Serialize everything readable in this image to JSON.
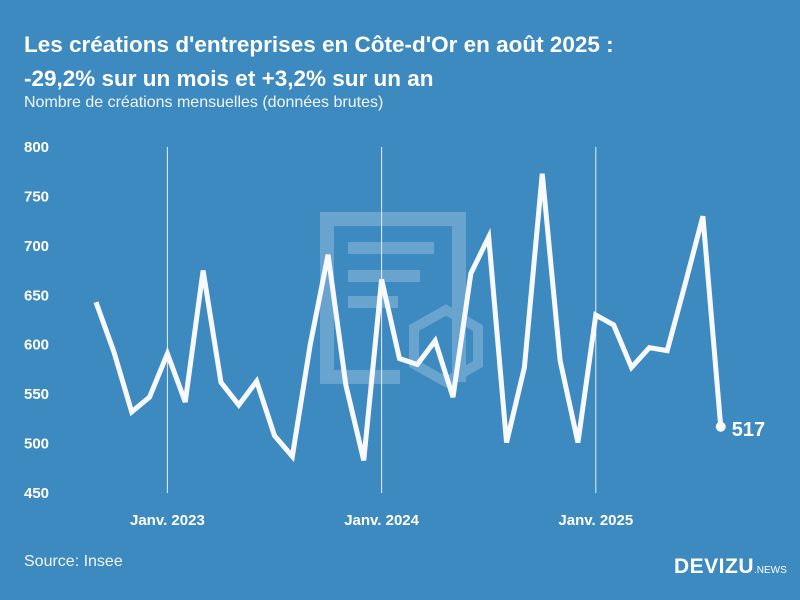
{
  "title_line1": "Les créations d'entreprises en Côte-d'Or en août 2025 :",
  "title_line2": "-29,2% sur un mois et +3,2% sur un an",
  "subtitle": "Nombre de créations mensuelles (données brutes)",
  "source": "Source: Insee",
  "logo": {
    "main": "DEVIZU",
    "sub": ".NEWS"
  },
  "colors": {
    "background": "#3d8ac0",
    "line": "#f7f9ff"
  },
  "chart_data": {
    "type": "line",
    "title": "Les créations d'entreprises en Côte-d'Or en août 2025 : -29,2% sur un mois et +3,2% sur un an",
    "ylabel": "Nombre de créations mensuelles (données brutes)",
    "ylim": [
      450,
      800
    ],
    "yticks": [
      "800",
      "750",
      "700",
      "650",
      "600",
      "550",
      "500",
      "450"
    ],
    "ytick_values": [
      800,
      750,
      700,
      650,
      600,
      550,
      500,
      450
    ],
    "xtick_labels": [
      "Janv. 2023",
      "Janv. 2024",
      "Janv. 2025"
    ],
    "xtick_indices": [
      4,
      16,
      28
    ],
    "x": [
      "2022-09",
      "2022-10",
      "2022-11",
      "2022-12",
      "2023-01",
      "2023-02",
      "2023-03",
      "2023-04",
      "2023-05",
      "2023-06",
      "2023-07",
      "2023-08",
      "2023-09",
      "2023-10",
      "2023-11",
      "2023-12",
      "2024-01",
      "2024-02",
      "2024-03",
      "2024-04",
      "2024-05",
      "2024-06",
      "2024-07",
      "2024-08",
      "2024-09",
      "2024-10",
      "2024-11",
      "2024-12",
      "2025-01",
      "2025-02",
      "2025-03",
      "2025-04",
      "2025-05",
      "2025-06",
      "2025-07",
      "2025-08"
    ],
    "series": [
      {
        "name": "Créations",
        "values": [
          643,
          593,
          532,
          547,
          591,
          542,
          675,
          562,
          539,
          563,
          508,
          487,
          600,
          691,
          559,
          483,
          666,
          586,
          580,
          604,
          547,
          672,
          709,
          501,
          577,
          773,
          584,
          501,
          630,
          620,
          577,
          597,
          594,
          661,
          730,
          517
        ]
      }
    ],
    "last_label": "517",
    "grid": false
  }
}
